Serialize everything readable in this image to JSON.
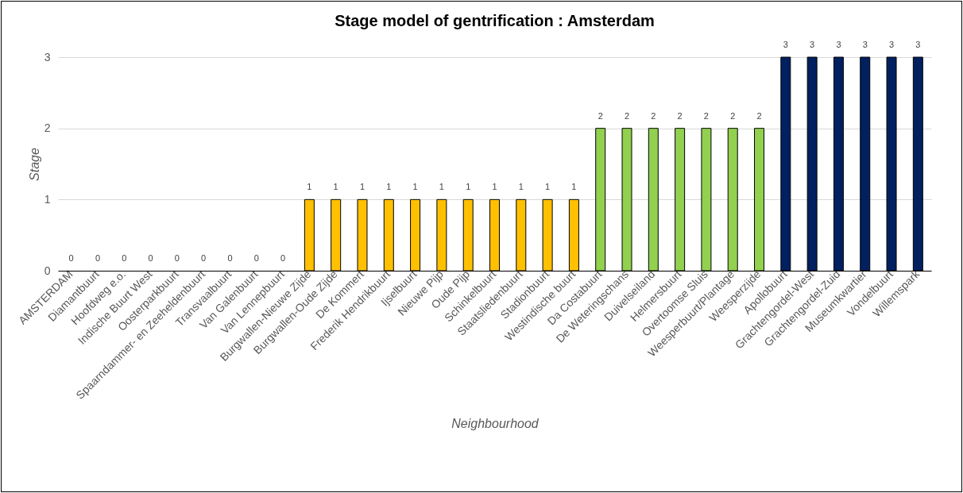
{
  "chart_data": {
    "type": "bar",
    "title": "Stage model of gentrification : Amsterdam",
    "xlabel": "Neighbourhood",
    "ylabel": "Stage",
    "categories": [
      "AMSTERDAM",
      "Diamantbuurt",
      "Hoofdweg e.o.",
      "Indische Buurt West",
      "Oosterparkbuurt",
      "Spaarndammer- en Zeeheldenbuurt",
      "Transvaalbuurt",
      "Van Galenbuurt",
      "Van Lennepbuurt",
      "Burgwallen-Nieuwe Zijde",
      "Burgwallen-Oude Zijde",
      "De Kommert",
      "Frederik Hendrikbuurt",
      "Ijselbuurt",
      "Nieuwe Pijp",
      "Oude Pijp",
      "Schinkelbuurt",
      "Staatsliedenbuurt",
      "Stadionbuurt",
      "Westindische buurt",
      "Da Costabuurt",
      "De Weteringschans",
      "Duivelseiland",
      "Helmersbuurt",
      "Overtoomse Sluis",
      "Weesperbuurt/Plantage",
      "Weesperzijde",
      "Apollobuurt",
      "Grachtengordel-West",
      "Grachtengordel-Zuid",
      "Museumkwartier",
      "Vondelbuurt",
      "Willemspark"
    ],
    "values": [
      0,
      0,
      0,
      0,
      0,
      0,
      0,
      0,
      0,
      1,
      1,
      1,
      1,
      1,
      1,
      1,
      1,
      1,
      1,
      1,
      2,
      2,
      2,
      2,
      2,
      2,
      2,
      3,
      3,
      3,
      3,
      3,
      3
    ],
    "colors": [
      "#ffc000",
      "#ffc000",
      "#ffc000",
      "#ffc000",
      "#ffc000",
      "#ffc000",
      "#ffc000",
      "#ffc000",
      "#ffc000",
      "#ffc000",
      "#ffc000",
      "#ffc000",
      "#ffc000",
      "#ffc000",
      "#ffc000",
      "#ffc000",
      "#ffc000",
      "#ffc000",
      "#ffc000",
      "#ffc000",
      "#92d050",
      "#92d050",
      "#92d050",
      "#92d050",
      "#92d050",
      "#92d050",
      "#92d050",
      "#002060",
      "#002060",
      "#002060",
      "#002060",
      "#002060",
      "#002060"
    ],
    "ylim": [
      0,
      3
    ],
    "yticks": [
      0,
      1,
      2,
      3
    ],
    "grid": "y",
    "data_labels": true
  }
}
